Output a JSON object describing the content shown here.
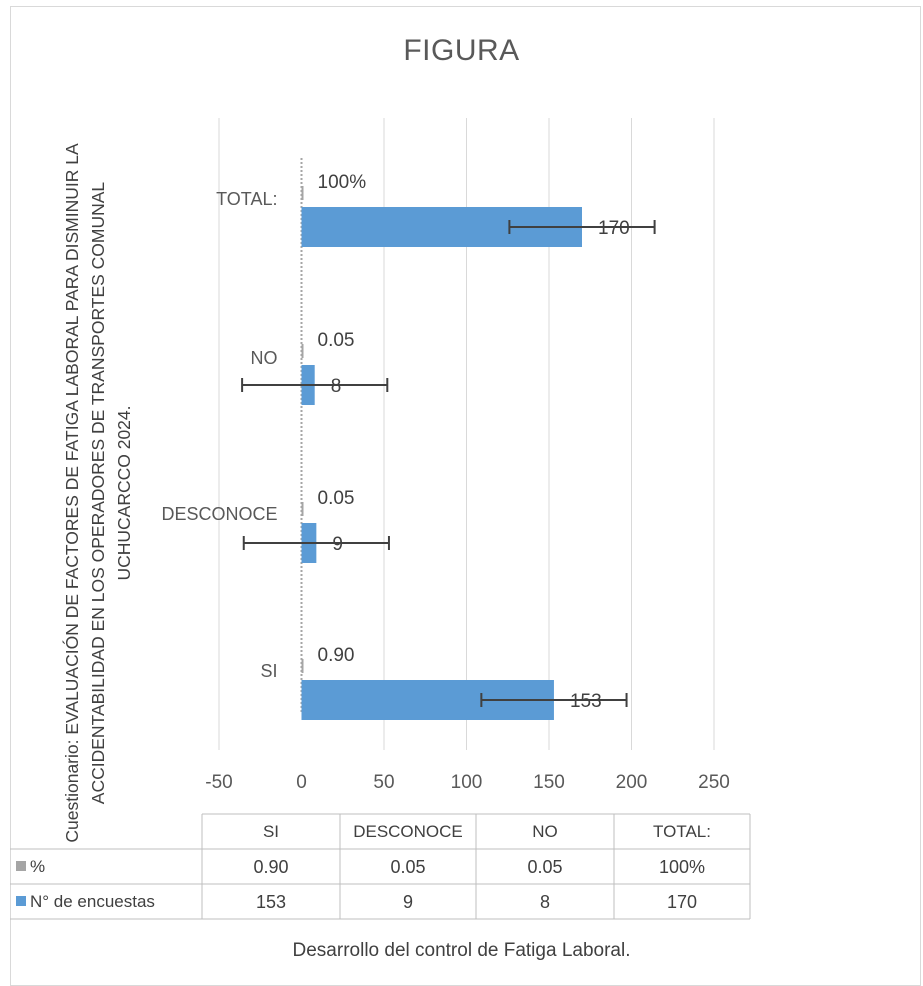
{
  "chart_data": {
    "type": "bar",
    "orientation": "horizontal",
    "title": "FIGURA",
    "ylabel": "Cuestionario: EVALUACIÓN DE FACTORES DE FATIGA LABORAL PARA DISMINUIR LA ACCIDENTABILIDAD EN LOS  OPERADORES DE TRANSPORTES COMUNAL UCHUCARCCO 2024.",
    "xlabel": "Desarrollo del control de Fatiga Laboral.",
    "categories": [
      "SI",
      "DESCONOCE",
      "NO",
      "TOTAL:"
    ],
    "series": [
      {
        "name": "%",
        "values": [
          0.9,
          0.05,
          0.05,
          1.0
        ],
        "labels": [
          "0.90",
          "0.05",
          "0.05",
          "100%"
        ],
        "color": "#a5a5a5"
      },
      {
        "name": "N° de encuestas",
        "values": [
          153,
          9,
          8,
          170
        ],
        "labels": [
          "153",
          "9",
          "8",
          "170"
        ],
        "color": "#5b9bd5",
        "error_bars": true
      }
    ],
    "xlim": [
      -50,
      250
    ],
    "xticks": [
      "-50",
      "0",
      "50",
      "100",
      "150",
      "200",
      "250"
    ],
    "grid": true,
    "data_table": true
  }
}
